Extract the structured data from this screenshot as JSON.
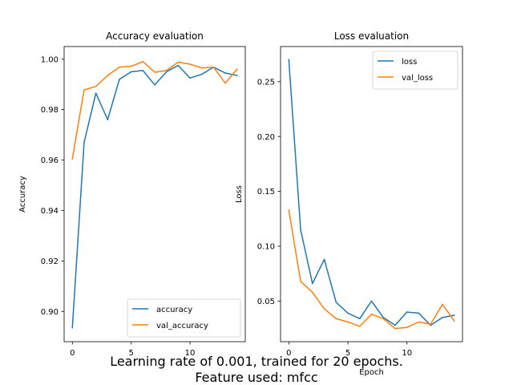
{
  "colors": {
    "series_blue": "#1f77b4",
    "series_orange": "#ff7f0e"
  },
  "caption": {
    "line1": "Learning rate of 0.001, trained for 20 epochs.",
    "line2": "Feature used: mfcc"
  },
  "chart_data": [
    {
      "type": "line",
      "title": "Accuracy evaluation",
      "xlabel": "",
      "ylabel": "Accuracy",
      "xlim": [
        -0.7,
        14.7
      ],
      "ylim": [
        0.888,
        1.005
      ],
      "xticks": [
        0,
        5,
        10
      ],
      "xtick_labels": [
        "0",
        "5",
        "10"
      ],
      "yticks": [
        0.9,
        0.92,
        0.94,
        0.96,
        0.98,
        1.0
      ],
      "ytick_labels": [
        "0.90",
        "0.92",
        "0.94",
        "0.96",
        "0.98",
        "1.00"
      ],
      "grid": false,
      "legend_position": "lower-right",
      "x": [
        0,
        1,
        2,
        3,
        4,
        5,
        6,
        7,
        8,
        9,
        10,
        11,
        12,
        13,
        14
      ],
      "series": [
        {
          "name": "accuracy",
          "color": "#1f77b4",
          "values": [
            0.8935,
            0.967,
            0.9865,
            0.976,
            0.992,
            0.995,
            0.9955,
            0.9898,
            0.995,
            0.9975,
            0.9925,
            0.994,
            0.9968,
            0.9945,
            0.9935
          ]
        },
        {
          "name": "val_accuracy",
          "color": "#ff7f0e",
          "values": [
            0.9605,
            0.9878,
            0.9892,
            0.9935,
            0.9968,
            0.9972,
            0.999,
            0.9948,
            0.9955,
            0.9988,
            0.998,
            0.9965,
            0.9968,
            0.9905,
            0.996
          ]
        }
      ]
    },
    {
      "type": "line",
      "title": "Loss evaluation",
      "xlabel": "Epoch",
      "ylabel": "Loss",
      "xlim": [
        -0.7,
        14.7
      ],
      "ylim": [
        0.013,
        0.282
      ],
      "xticks": [
        0,
        5,
        10
      ],
      "xtick_labels": [
        "0",
        "5",
        "10"
      ],
      "yticks": [
        0.05,
        0.1,
        0.15,
        0.2,
        0.25
      ],
      "ytick_labels": [
        "0.05",
        "0.10",
        "0.15",
        "0.20",
        "0.25"
      ],
      "grid": false,
      "legend_position": "upper-right",
      "x": [
        0,
        1,
        2,
        3,
        4,
        5,
        6,
        7,
        8,
        9,
        10,
        11,
        12,
        13,
        14
      ],
      "series": [
        {
          "name": "loss",
          "color": "#1f77b4",
          "values": [
            0.27,
            0.115,
            0.066,
            0.088,
            0.049,
            0.039,
            0.034,
            0.05,
            0.035,
            0.028,
            0.04,
            0.039,
            0.028,
            0.035,
            0.037
          ]
        },
        {
          "name": "val_loss",
          "color": "#ff7f0e",
          "values": [
            0.133,
            0.068,
            0.058,
            0.043,
            0.034,
            0.031,
            0.027,
            0.038,
            0.034,
            0.025,
            0.026,
            0.031,
            0.029,
            0.047,
            0.032
          ]
        }
      ]
    }
  ]
}
